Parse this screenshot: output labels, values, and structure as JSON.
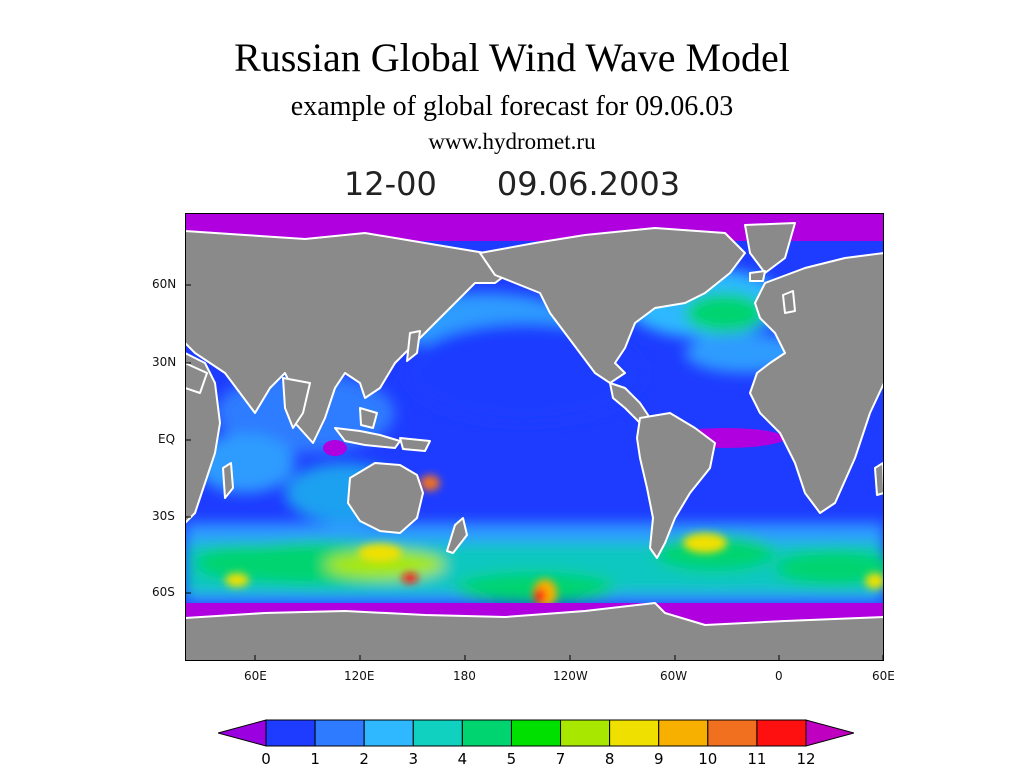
{
  "header": {
    "title": "Russian Global Wind Wave Model",
    "subtitle": "example of global forecast for 09.06.03",
    "website": "www.hydromet.ru"
  },
  "map": {
    "time_label": "12-00",
    "date_label": "09.06.2003",
    "lat_labels": [
      "60N",
      "30N",
      "EQ",
      "30S",
      "60S"
    ],
    "lon_labels": [
      "60E",
      "120E",
      "180",
      "120W",
      "60W",
      "0",
      "60E"
    ],
    "colors": {
      "land": "#8a8a8a",
      "ice": "#b000e0",
      "coast": "#ffffff"
    }
  },
  "colorbar": {
    "labels": [
      "0",
      "1",
      "2",
      "3",
      "4",
      "5",
      "7",
      "8",
      "9",
      "10",
      "11",
      "12"
    ],
    "colors": [
      "#9b00e0",
      "#1e3cff",
      "#2f7bff",
      "#2fb8ff",
      "#10d0c0",
      "#00d470",
      "#00e000",
      "#a8e800",
      "#f0e000",
      "#f8b000",
      "#f07020",
      "#ff1010",
      "#c000c0"
    ]
  }
}
